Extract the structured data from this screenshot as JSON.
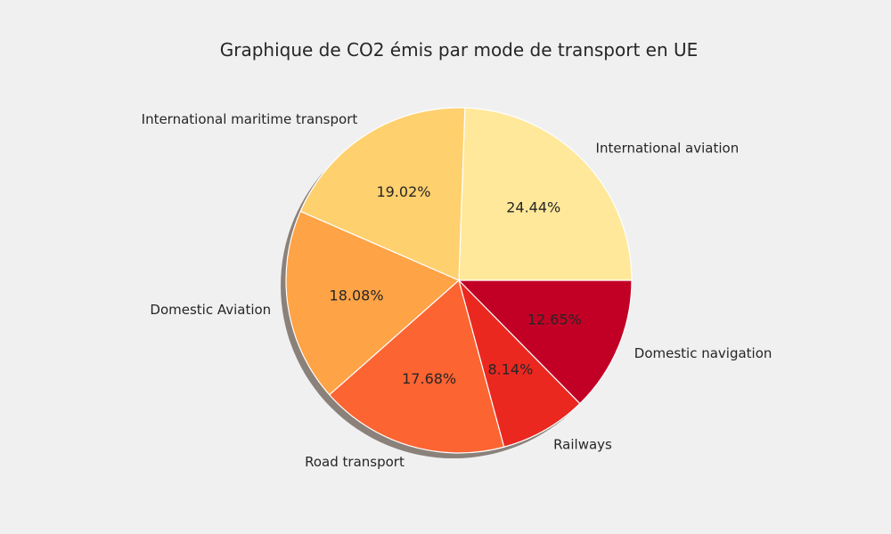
{
  "chart_data": {
    "type": "pie",
    "title": "Graphique de CO2 émis par mode de transport en UE",
    "slices": [
      {
        "label": "International aviation",
        "value": 24.44,
        "pct_label": "24.44%",
        "color": "#ffe89a"
      },
      {
        "label": "International maritime transport",
        "value": 19.02,
        "pct_label": "19.02%",
        "color": "#ffd06e"
      },
      {
        "label": "Domestic Aviation",
        "value": 18.08,
        "pct_label": "18.08%",
        "color": "#fea346"
      },
      {
        "label": "Road transport",
        "value": 17.68,
        "pct_label": "17.68%",
        "color": "#fc6432"
      },
      {
        "label": "Railways",
        "value": 8.14,
        "pct_label": "8.14%",
        "color": "#ea2820"
      },
      {
        "label": "Domestic navigation",
        "value": 12.65,
        "pct_label": "12.65%",
        "color": "#c20026"
      }
    ],
    "start_angle_deg": 0,
    "direction": "counterclockwise",
    "shadow": true,
    "grid": false,
    "legend": "none"
  },
  "colors": {
    "background": "#f0f0f0",
    "edge": "#ffffff",
    "shadow": "#8a817a",
    "text": "#262626"
  }
}
